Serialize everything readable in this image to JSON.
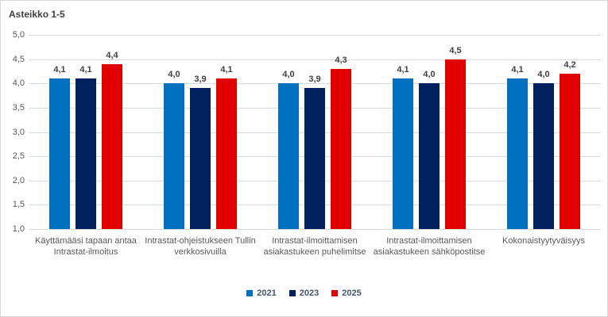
{
  "chart_data": {
    "type": "bar",
    "title": "Asteikko 1-5",
    "xlabel": "",
    "ylabel": "",
    "ylim": [
      1.0,
      5.0
    ],
    "ytick_step": 0.5,
    "ytick_labels": [
      "5,0",
      "4,5",
      "4,0",
      "3,5",
      "3,0",
      "2,5",
      "2,0",
      "1,5",
      "1,0"
    ],
    "grid": true,
    "legend_position": "bottom",
    "decimal_separator": ",",
    "categories": [
      "Käyttämääsi tapaan antaa Intrastat-ilmoitus",
      "Intrastat-ohjeistukseen Tullin verkkosivuilla",
      "Intrastat-ilmoittamisen asiakastukeen puhelimitse",
      "Intrastat-ilmoittamisen asiakastukeen sähköpostitse",
      "Kokonaistyytyväisyys"
    ],
    "category_lines": [
      [
        "Käyttämääsi tapaan antaa",
        "Intrastat-ilmoitus"
      ],
      [
        "Intrastat-ohjeistukseen Tullin",
        "verkkosivuilla"
      ],
      [
        "Intrastat-ilmoittamisen",
        "asiakastukeen puhelimitse"
      ],
      [
        "Intrastat-ilmoittamisen",
        "asiakastukeen sähköpostitse"
      ],
      [
        "Kokonaistyytyväisyys"
      ]
    ],
    "series": [
      {
        "name": "2021",
        "color": "#0070C0",
        "values": [
          4.1,
          4.0,
          4.0,
          4.1,
          4.1
        ],
        "labels": [
          "4,1",
          "4,0",
          "4,0",
          "4,1",
          "4,1"
        ]
      },
      {
        "name": "2023",
        "color": "#002060",
        "values": [
          4.1,
          3.9,
          3.9,
          4.0,
          4.0
        ],
        "labels": [
          "4,1",
          "3,9",
          "3,9",
          "4,0",
          "4,0"
        ]
      },
      {
        "name": "2025",
        "color": "#E00000",
        "values": [
          4.4,
          4.1,
          4.3,
          4.5,
          4.2
        ],
        "labels": [
          "4,4",
          "4,1",
          "4,3",
          "4,5",
          "4,2"
        ]
      }
    ]
  },
  "colors": {
    "background": "#FFFFFF",
    "border": "#D9D9D9",
    "gridline": "#D9D9D9",
    "title_text": "#404040",
    "axis_text": "#595959",
    "data_label_text": "#404040",
    "legend_text": "#44546A"
  }
}
